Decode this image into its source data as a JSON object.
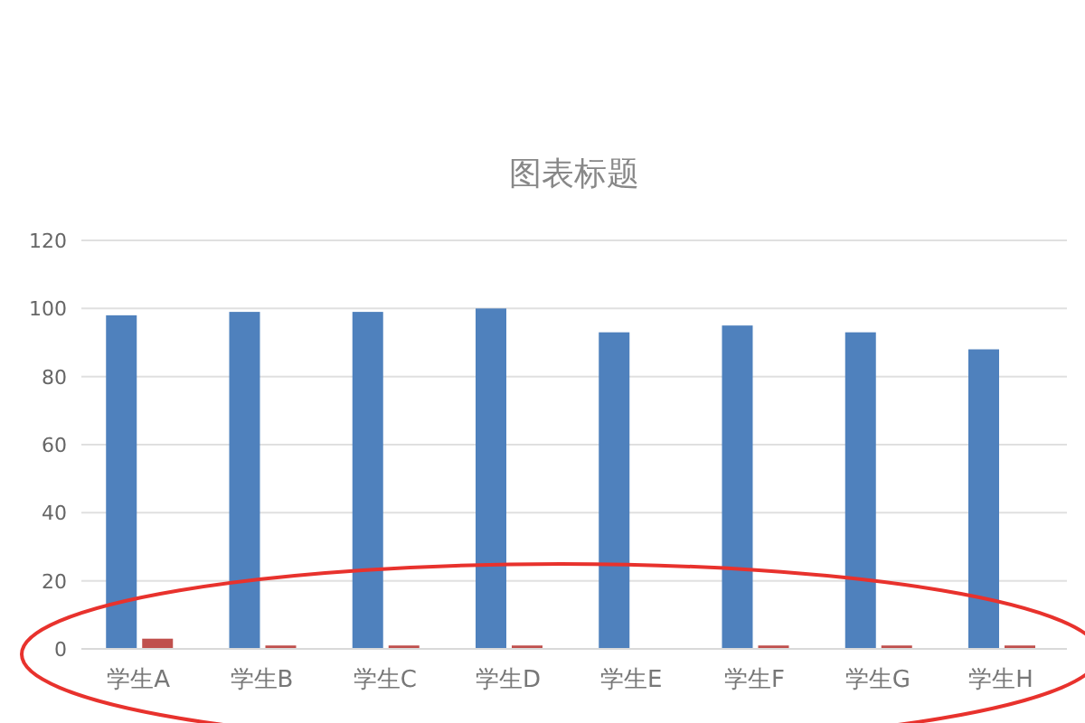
{
  "chart_data": {
    "type": "bar",
    "title": "图表标题",
    "categories": [
      "学生A",
      "学生B",
      "学生C",
      "学生D",
      "学生E",
      "学生F",
      "学生G",
      "学生H"
    ],
    "series": [
      {
        "color": "#4f81bd",
        "values": [
          98,
          99,
          99,
          100,
          93,
          95,
          93,
          88
        ]
      },
      {
        "color": "#c0504d",
        "values": [
          3,
          1,
          1,
          1,
          0,
          1,
          1,
          1
        ]
      }
    ],
    "ylim": [
      0,
      120
    ],
    "yticks": [
      0,
      20,
      40,
      60,
      80,
      100,
      120
    ],
    "grid": "y"
  }
}
